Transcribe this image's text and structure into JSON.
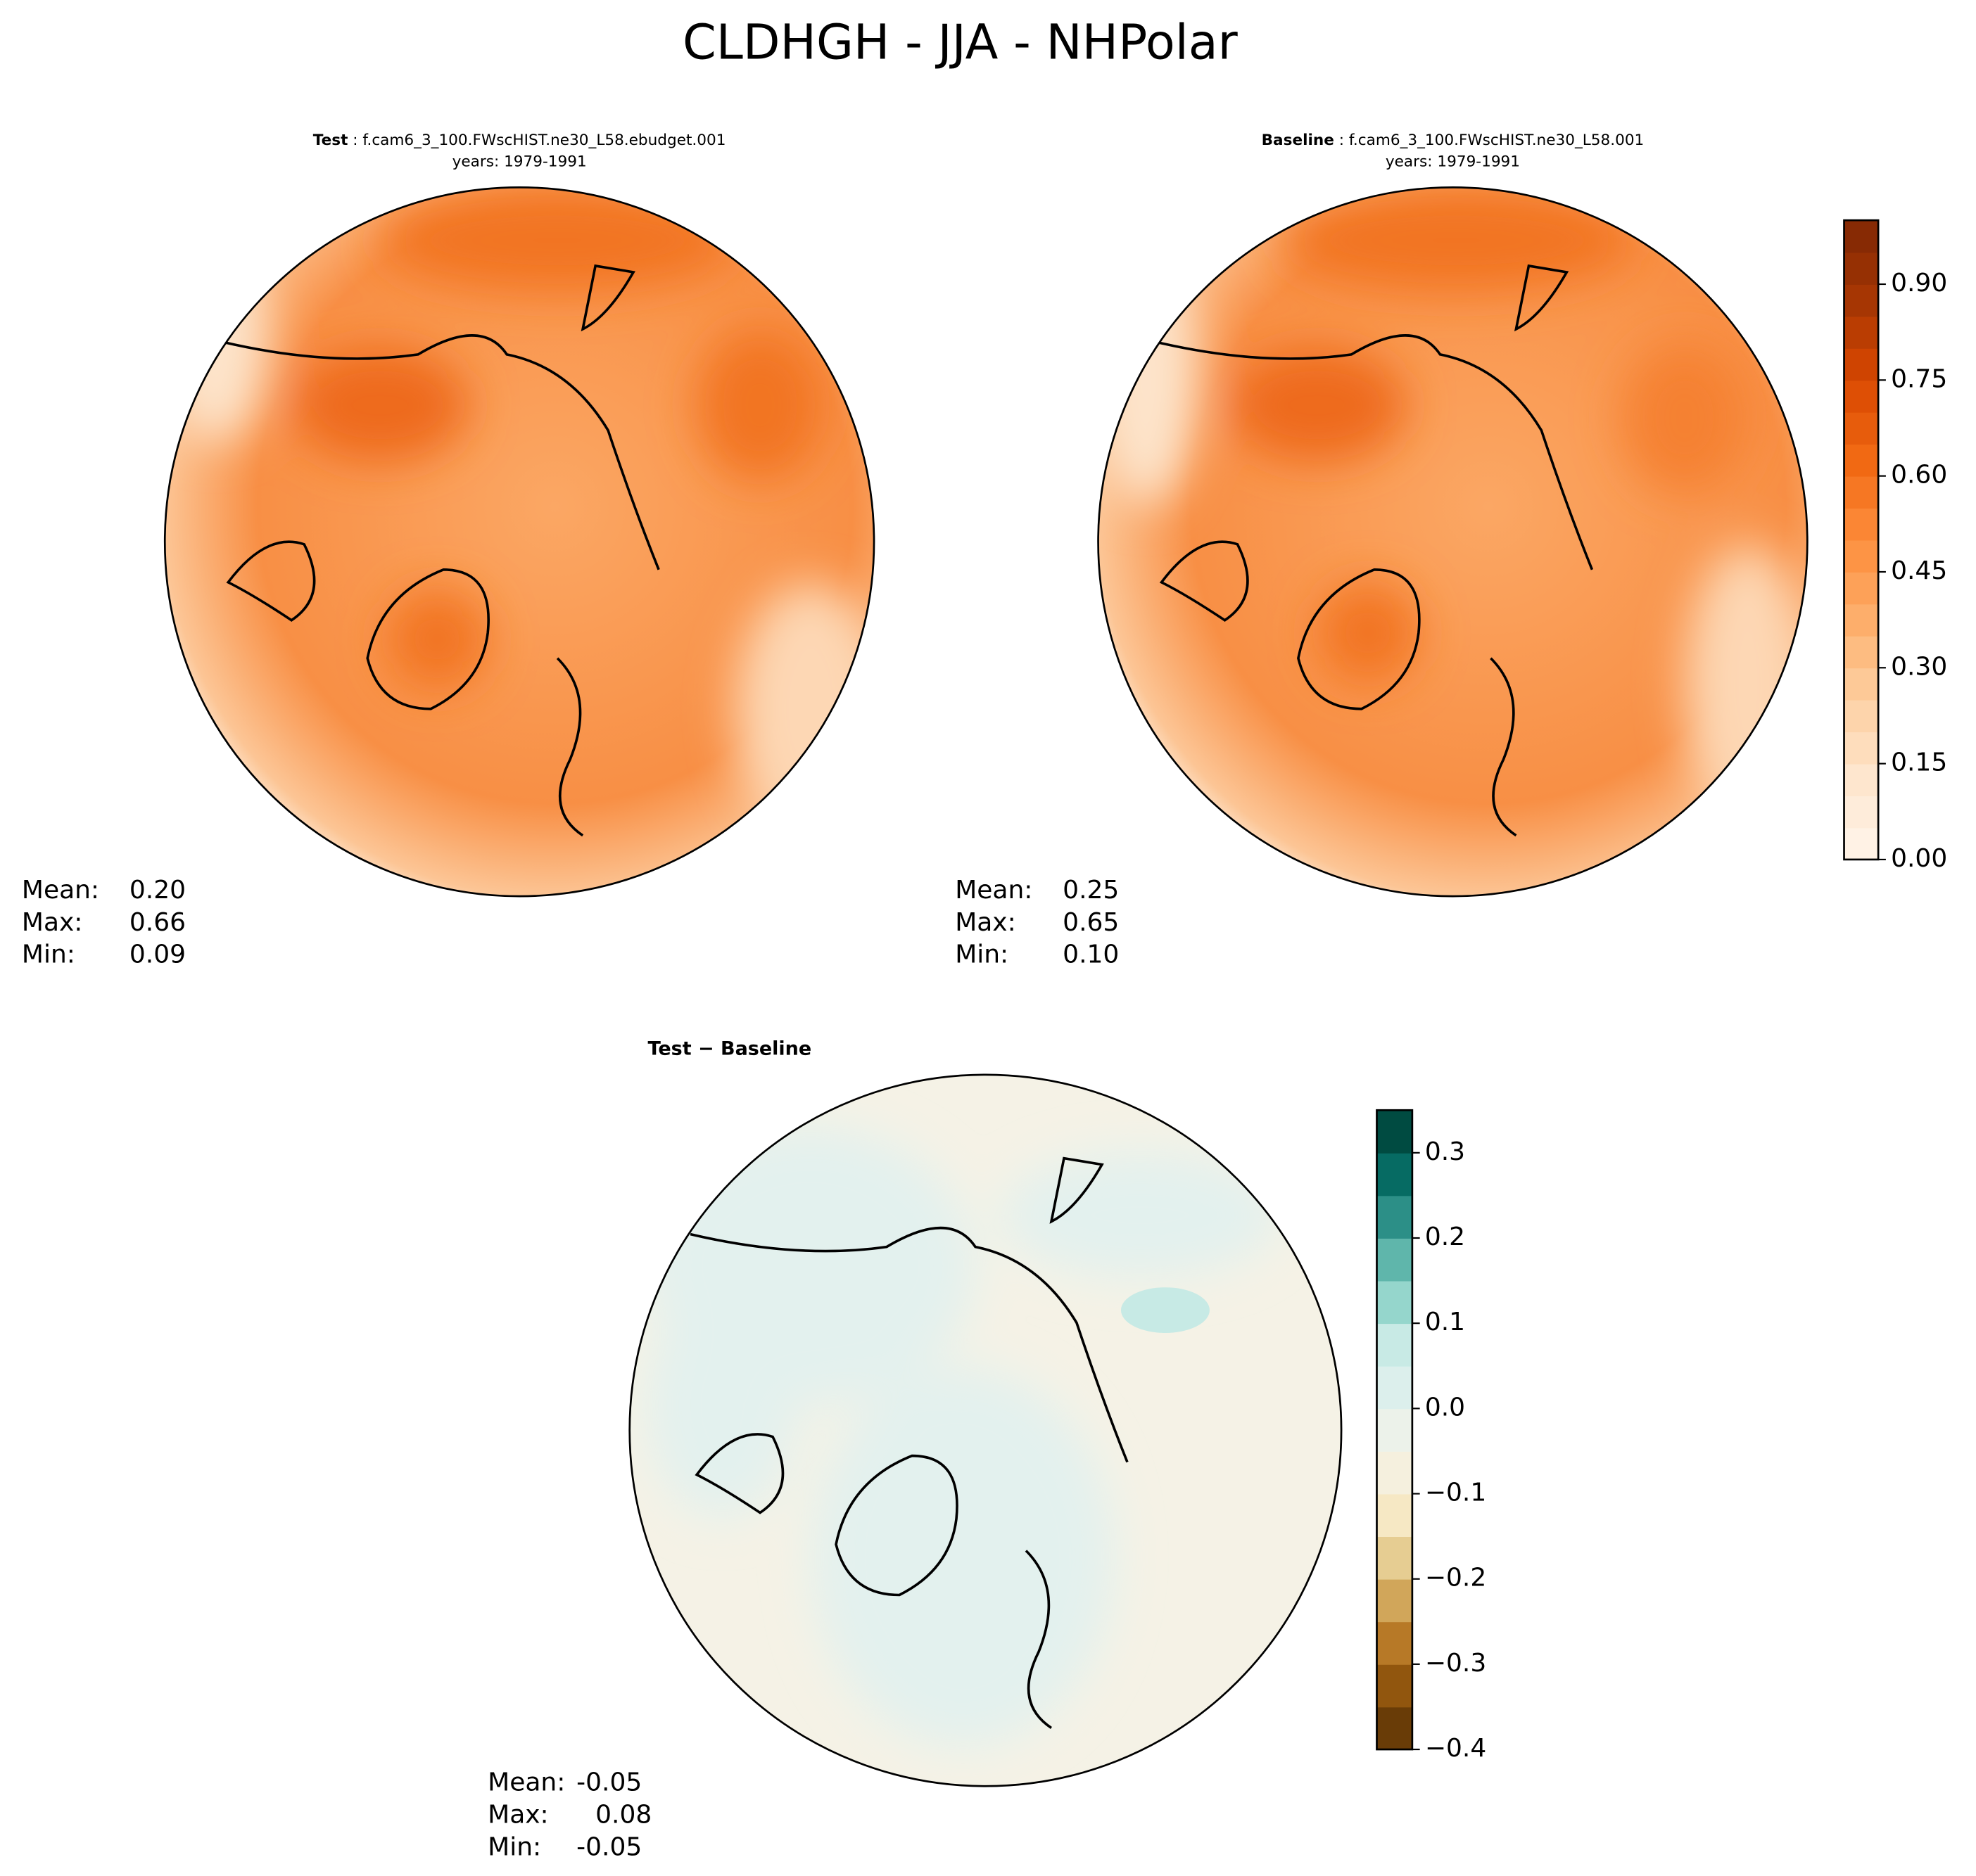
{
  "title": "CLDHGH - JJA - NHPolar",
  "panels": [
    {
      "label_bold": "Test",
      "label": " : f.cam6_3_100.FWscHIST.ne30_L58.ebudget.001",
      "years": "years: 1979-1991",
      "stats": [
        {
          "label": "Mean:",
          "value": "0.20"
        },
        {
          "label": "Max:",
          "value": "0.66"
        },
        {
          "label": "Min:",
          "value": "0.09"
        }
      ]
    },
    {
      "label_bold": "Baseline",
      "label": " : f.cam6_3_100.FWscHIST.ne30_L58.001",
      "years": "years: 1979-1991",
      "stats": [
        {
          "label": "Mean:",
          "value": "0.25"
        },
        {
          "label": "Max:",
          "value": "0.65"
        },
        {
          "label": "Min:",
          "value": "0.10"
        }
      ]
    },
    {
      "label_bold": "Test − Baseline",
      "stats": [
        {
          "label": "Mean:",
          "value": "-0.05"
        },
        {
          "label": "Max:",
          "value": "0.08"
        },
        {
          "label": "Min:",
          "value": "-0.05"
        }
      ]
    }
  ],
  "colorbars": [
    {
      "lim": [
        0,
        1.0
      ],
      "step": 0.05,
      "colors": [
        "#fff5eb",
        "#fee6ce",
        "#fdd0a2",
        "#fdae6b",
        "#fd8d3c",
        "#f16913",
        "#d94801",
        "#a63603",
        "#7f2704"
      ],
      "ticks": [
        {
          "value": 0,
          "label": "0.00"
        },
        {
          "value": 0.15,
          "label": "0.15"
        },
        {
          "value": 0.3,
          "label": "0.30"
        },
        {
          "value": 0.45,
          "label": "0.45"
        },
        {
          "value": 0.6,
          "label": "0.60"
        },
        {
          "value": 0.75,
          "label": "0.75"
        },
        {
          "value": 0.9,
          "label": "0.90"
        }
      ]
    },
    {
      "lim": [
        -0.4,
        0.35
      ],
      "step": 0.05,
      "colors": [
        "#543005",
        "#8c510a",
        "#bf812d",
        "#dfc27d",
        "#f6e8c3",
        "#f5f2e6",
        "#e3f1ee",
        "#c7eae5",
        "#80cdc1",
        "#35978f",
        "#01665e",
        "#003c30"
      ],
      "ticks": [
        {
          "value": -0.4,
          "label": "−0.4"
        },
        {
          "value": -0.3,
          "label": "−0.3"
        },
        {
          "value": -0.2,
          "label": "−0.2"
        },
        {
          "value": -0.1,
          "label": "−0.1"
        },
        {
          "value": 0.0,
          "label": "0.0"
        },
        0.1,
        0.2,
        0.3
      ]
    }
  ]
}
